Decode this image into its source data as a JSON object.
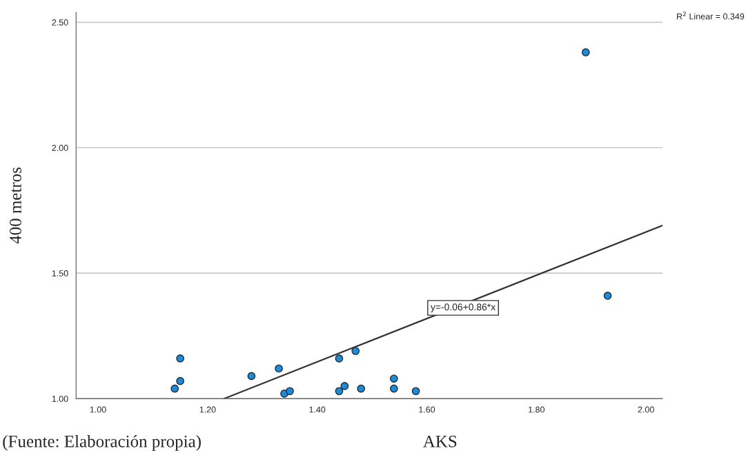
{
  "chart_data": {
    "type": "scatter",
    "xlabel": "AKS",
    "ylabel": "400 metros",
    "xlim": [
      0.96,
      2.03
    ],
    "ylim": [
      1.0,
      2.54
    ],
    "xticks": [
      {
        "value": 1.0,
        "label": "1.00"
      },
      {
        "value": 1.2,
        "label": "1.20"
      },
      {
        "value": 1.4,
        "label": "1.40"
      },
      {
        "value": 1.6,
        "label": "1.60"
      },
      {
        "value": 1.8,
        "label": "1.80"
      },
      {
        "value": 2.0,
        "label": "2.00"
      }
    ],
    "yticks": [
      {
        "value": 1.0,
        "label": "1.00"
      },
      {
        "value": 1.5,
        "label": "1.50"
      },
      {
        "value": 2.0,
        "label": "2.00"
      },
      {
        "value": 2.5,
        "label": "2.50"
      }
    ],
    "grid": "y",
    "series": [
      {
        "marker": "circle",
        "color": "#1f8ad6",
        "x": [
          1.14,
          1.15,
          1.15,
          1.28,
          1.33,
          1.34,
          1.35,
          1.44,
          1.44,
          1.45,
          1.47,
          1.48,
          1.54,
          1.54,
          1.58,
          1.89,
          1.93
        ],
        "values": [
          1.04,
          1.07,
          1.16,
          1.09,
          1.12,
          1.02,
          1.03,
          1.16,
          1.03,
          1.05,
          1.19,
          1.04,
          1.08,
          1.04,
          1.03,
          2.38,
          1.41
        ]
      },
      {
        "type": "line",
        "color": "#333333",
        "x": [
          1.23,
          2.03
        ],
        "values": [
          1.0,
          1.69
        ]
      }
    ],
    "annotations": [
      "R$^{2}$ Linear = 0.349",
      "(Fuente: Elaboración propia)",
      "y=-0.06+0.86*x"
    ]
  }
}
